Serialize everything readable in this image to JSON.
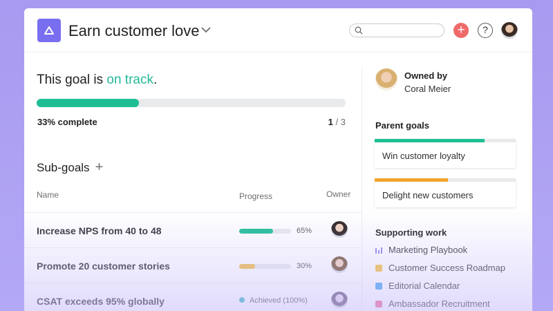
{
  "header": {
    "title": "Earn customer love",
    "search_placeholder": "",
    "logo_icon": "goal-triangle-icon"
  },
  "status": {
    "prefix": "This goal is ",
    "state": "on track",
    "suffix": ".",
    "progress_percent": 33,
    "progress_label": "33% complete",
    "done": "1",
    "total": "/ 3",
    "accent": "#1fbe94"
  },
  "subgoals": {
    "title": "Sub-goals",
    "add": "+",
    "columns": {
      "name": "Name",
      "progress": "Progress",
      "owner": "Owner"
    },
    "rows": [
      {
        "name": "Increase NPS from 40 to 48",
        "progress": 65,
        "label": "65%",
        "color": "#1fbe94"
      },
      {
        "name": "Promote 20 customer stories",
        "progress": 30,
        "label": "30%",
        "color": "#f1bd4a"
      },
      {
        "name": "CSAT exceeds 95% globally",
        "progress": 100,
        "label": "Achieved (100%)",
        "color": "#3cb8c4"
      }
    ]
  },
  "owner": {
    "label": "Owned by",
    "name": "Coral Meier"
  },
  "parent_goals": {
    "title": "Parent goals",
    "items": [
      {
        "name": "Win customer loyalty",
        "progress": 78,
        "color": "#1fbe94"
      },
      {
        "name": "Delight new customers",
        "progress": 52,
        "color": "#f0a52c"
      }
    ]
  },
  "supporting": {
    "title": "Supporting work",
    "items": [
      {
        "name": "Marketing Playbook",
        "icon": "portfolio-bars-icon",
        "color": "#8d84e8"
      },
      {
        "name": "Customer Success Roadmap",
        "icon": "project-square-icon",
        "color": "#f6c443"
      },
      {
        "name": "Editorial Calendar",
        "icon": "project-square-icon",
        "color": "#4aa8f0"
      },
      {
        "name": "Ambassador Recruitment",
        "icon": "project-square-icon",
        "color": "#f06a9a"
      }
    ]
  }
}
